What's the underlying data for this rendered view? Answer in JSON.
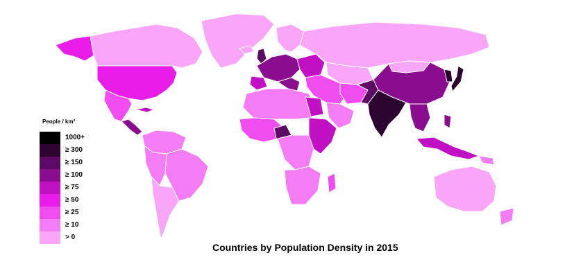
{
  "map": {
    "title": "Countries by Population Density in 2015",
    "legend": {
      "title": "People / km²",
      "items": [
        {
          "label": "1000+",
          "color": "#000000"
        },
        {
          "label": "≥ 300",
          "color": "#2d0430"
        },
        {
          "label": "≥ 150",
          "color": "#5c0a63"
        },
        {
          "label": "≥ 100",
          "color": "#8a0d8f"
        },
        {
          "label": "≥ 75",
          "color": "#c10fc4"
        },
        {
          "label": "≥ 50",
          "color": "#e81ee8"
        },
        {
          "label": "≥ 25",
          "color": "#f04cf0"
        },
        {
          "label": "≥ 10",
          "color": "#f47cf4"
        },
        {
          "label": "> 0",
          "color": "#f9a6f9"
        }
      ]
    },
    "colors": {
      "background": "#ffffff",
      "ocean": "#ffffff",
      "border": "#ffffff"
    }
  }
}
